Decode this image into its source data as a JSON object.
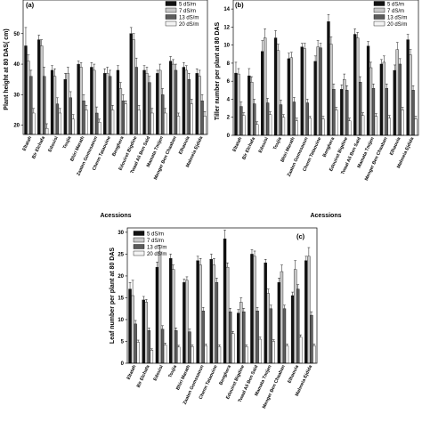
{
  "chart_data": [
    {
      "type": "bar",
      "panel_label": "(a)",
      "ylabel": "Plant height at 80 DAS( cm)",
      "xlabel": "Acessions",
      "ylim": [
        17,
        61
      ],
      "yticks": [
        20,
        30,
        40,
        50
      ],
      "grid": false,
      "legend": "top-right",
      "categories": [
        "Eltatah",
        "Bir Elchafa",
        "Edouisi",
        "Toujia",
        "Bhiri Marath",
        "Zaaten Gomssaoun",
        "Chenn Tataouine",
        "Benghera",
        "Edouiret Bigdine",
        "Twaal Ali Ben Said",
        "Mamata Tmijen",
        "Menger Ben Chaaban",
        "Elhaouia",
        "Mahneia Ejdida"
      ],
      "series": [
        {
          "name": "5 dS/m",
          "color": "#111111",
          "values": [
            46,
            48,
            38,
            35,
            40,
            39,
            37,
            38,
            50,
            38,
            37,
            41,
            39,
            37
          ],
          "errors": [
            6,
            1.5,
            1.5,
            2,
            1,
            1.5,
            1.5,
            1.5,
            2,
            1.5,
            1,
            1.5,
            1.5,
            1.5
          ]
        },
        {
          "name": "7 dS/m",
          "color": "#c8c8c8",
          "values": [
            41,
            46,
            36,
            37,
            39,
            38,
            37,
            32,
            48,
            37,
            38,
            40,
            38,
            36
          ],
          "errors": [
            2,
            2,
            2.5,
            2,
            1.5,
            2,
            2,
            2,
            2,
            2,
            2,
            1.5,
            1.5,
            2
          ]
        },
        {
          "name": "13 dS/m",
          "color": "#5c5c5c",
          "values": [
            36,
            36,
            27,
            29,
            28,
            24,
            36,
            28,
            39,
            34,
            30,
            38,
            35,
            28
          ],
          "errors": [
            2,
            3,
            2,
            2,
            2,
            2,
            2,
            2,
            3,
            2,
            2,
            2,
            2,
            2
          ]
        },
        {
          "name": "20 dS/m",
          "color": "#f4f4f4",
          "values": [
            24,
            19,
            24,
            22,
            25,
            21,
            25,
            27,
            25,
            24,
            24,
            23,
            27,
            23
          ],
          "errors": [
            1.5,
            1.5,
            1.5,
            1.5,
            1.5,
            1,
            1.5,
            1,
            1.5,
            1.5,
            1.5,
            1,
            1.5,
            1.5
          ]
        }
      ]
    },
    {
      "type": "bar",
      "panel_label": "(b)",
      "ylabel": "Tiller number per plant at 80 DAS",
      "xlabel": "Acessions",
      "ylim": [
        0,
        15
      ],
      "yticks": [
        0,
        2,
        4,
        6,
        8,
        10,
        12,
        14
      ],
      "grid": false,
      "legend": "top-right",
      "categories": [
        "Eltatah",
        "Bir Elchafa",
        "Edouisi",
        "Toujia",
        "Bhiri Marath",
        "Zaaten Gomssaoun",
        "Chenn Tataouine",
        "Benghera",
        "Edouiret Bigdine",
        "Twaal Ali Ben Said",
        "Mamata Tmijen",
        "Menger Ben Chaaban",
        "Elhaouia",
        "Mahneia Ejdida"
      ],
      "series": [
        {
          "name": "5 dS/m",
          "color": "#111111",
          "values": [
            6.9,
            6.6,
            9.3,
            10.8,
            8.5,
            9.8,
            8.2,
            12.6,
            5.1,
            11.2,
            9.9,
            7.9,
            7.2,
            10.6
          ],
          "errors": [
            1.2,
            0.8,
            1.2,
            0.8,
            0.6,
            0.4,
            0.6,
            0.8,
            0.5,
            0.6,
            0.5,
            0.5,
            0.6,
            0.6
          ]
        },
        {
          "name": "7 dS/m",
          "color": "#c8c8c8",
          "values": [
            6.8,
            5.9,
            10.8,
            9.4,
            8.6,
            9.6,
            9.8,
            10.1,
            6.2,
            10.8,
            7.5,
            8.1,
            9.5,
            8.9
          ],
          "errors": [
            0.6,
            0.6,
            1.0,
            0.7,
            0.6,
            0.6,
            0.7,
            0.8,
            0.6,
            0.6,
            0.6,
            0.7,
            0.8,
            0.6
          ]
        },
        {
          "name": "13 dS/m",
          "color": "#5c5c5c",
          "values": [
            3.2,
            3.5,
            3.6,
            3.4,
            3.7,
            3.6,
            9.7,
            5.1,
            5.0,
            5.9,
            5.2,
            5.2,
            7.9,
            5.0
          ],
          "errors": [
            0.5,
            0.5,
            0.5,
            0.5,
            0.5,
            0.4,
            0.5,
            0.6,
            0.5,
            0.6,
            0.5,
            0.5,
            0.6,
            0.5
          ]
        },
        {
          "name": "20 dS/m",
          "color": "#f4f4f4",
          "values": [
            2.2,
            1.2,
            2.3,
            2.0,
            1.6,
            1.9,
            1.8,
            2.8,
            1.6,
            2.2,
            2.1,
            1.9,
            2.8,
            1.8
          ],
          "errors": [
            0.3,
            0.3,
            0.3,
            0.3,
            0.3,
            0.2,
            0.3,
            0.3,
            0.3,
            0.3,
            0.3,
            0.3,
            0.3,
            0.3
          ]
        }
      ]
    },
    {
      "type": "bar",
      "panel_label": "(c)",
      "ylabel": "Leaf number per plant at 80 DAS",
      "ylim": [
        0,
        31
      ],
      "yticks": [
        0,
        5,
        10,
        15,
        20,
        25,
        30
      ],
      "grid": false,
      "legend": "top-left",
      "categories": [
        "Eltatah",
        "Bir Elchafa",
        "Edouisi",
        "Toujia",
        "Bhiri Marath",
        "Zaaten Gomssaoun",
        "Chenn Tataouine",
        "Benghera",
        "Edouiret Bigdine",
        "Twaal Ali Ben Said",
        "Mamata Tmijen",
        "Menger Ben Chaaban",
        "Elhaouia",
        "Mahneia Ejdida"
      ],
      "series": [
        {
          "name": "5 dS/m",
          "color": "#111111",
          "values": [
            17.0,
            14.5,
            22.0,
            24.0,
            18.5,
            23.5,
            23.8,
            28.5,
            11.5,
            25.0,
            23.0,
            18.5,
            15.5,
            23.5
          ],
          "errors": [
            1.5,
            0.8,
            1.2,
            1.0,
            0.8,
            1.0,
            1.2,
            2.0,
            0.8,
            1.0,
            0.8,
            1.0,
            0.8,
            1.0
          ]
        },
        {
          "name": "7 dS/m",
          "color": "#c8c8c8",
          "values": [
            15.5,
            14.0,
            25.5,
            21.5,
            19.0,
            22.5,
            22.5,
            22.0,
            14.0,
            24.5,
            16.0,
            21.0,
            21.5,
            24.5
          ],
          "errors": [
            3.5,
            0.6,
            1.5,
            1.0,
            0.8,
            1.5,
            1.5,
            1.0,
            1.0,
            1.2,
            1.0,
            1.5,
            2.0,
            2.0
          ]
        },
        {
          "name": "13 dS/m",
          "color": "#5c5c5c",
          "values": [
            9.0,
            7.5,
            7.8,
            7.5,
            7.2,
            12.0,
            18.5,
            11.8,
            11.8,
            12.0,
            12.5,
            12.5,
            17.0,
            11.0
          ],
          "errors": [
            0.8,
            0.6,
            0.8,
            0.6,
            0.6,
            0.8,
            1.0,
            0.8,
            0.8,
            0.8,
            0.8,
            0.8,
            1.0,
            0.8
          ]
        },
        {
          "name": "20 dS/m",
          "color": "#f4f4f4",
          "values": [
            4.8,
            3.0,
            4.2,
            3.7,
            3.8,
            4.0,
            3.8,
            6.8,
            3.8,
            5.5,
            5.0,
            4.0,
            6.0,
            4.0
          ],
          "errors": [
            0.5,
            0.3,
            0.4,
            0.4,
            0.4,
            0.4,
            0.4,
            0.5,
            0.4,
            0.5,
            0.4,
            0.4,
            0.5,
            0.4
          ]
        }
      ]
    }
  ]
}
